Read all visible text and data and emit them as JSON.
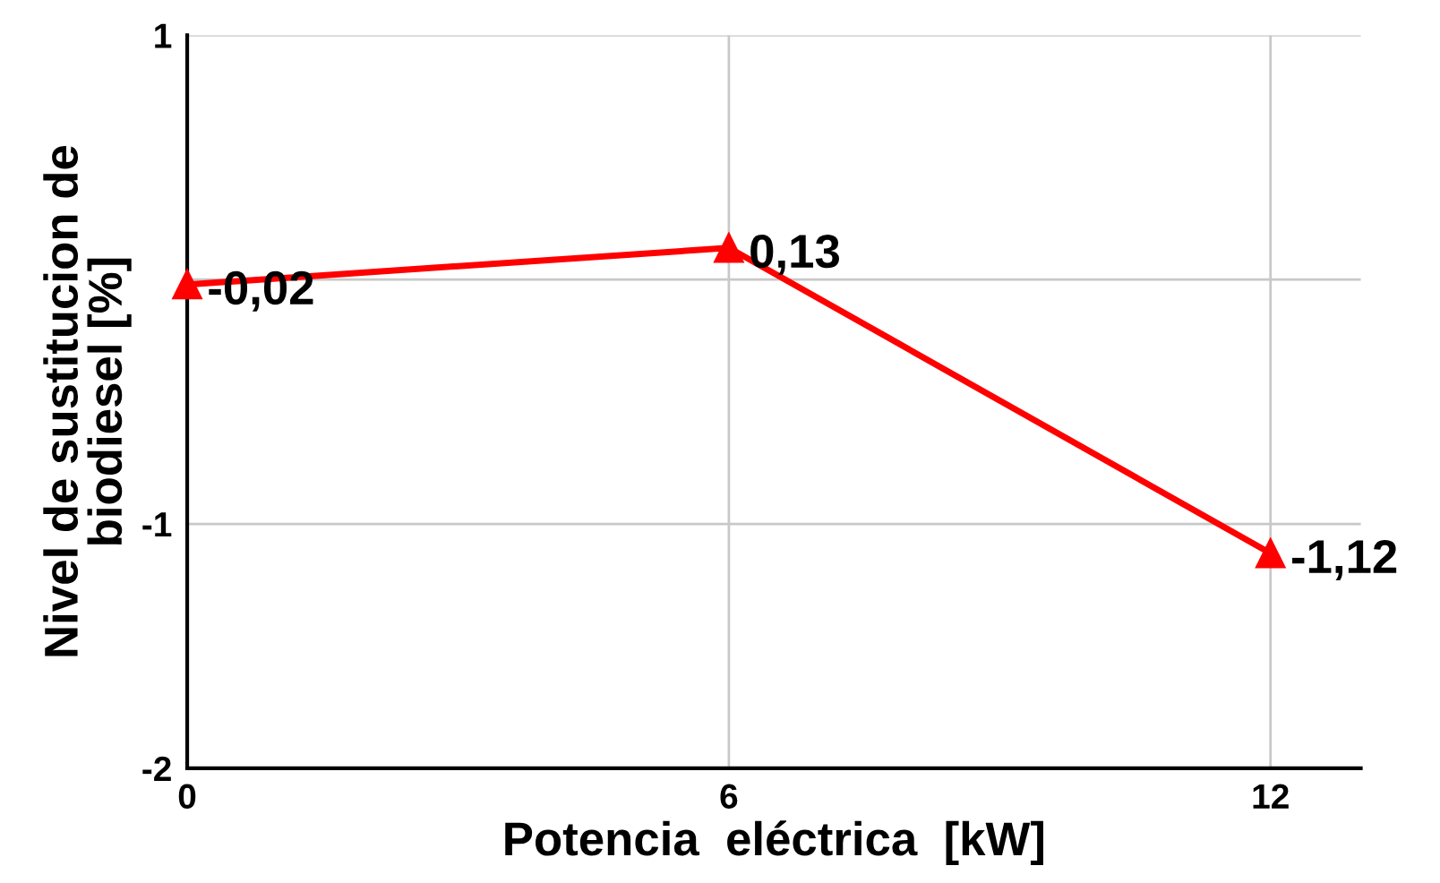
{
  "chart_data": {
    "type": "line",
    "xlabel": "Potencia  eléctrica  [kW]",
    "ylabel": "Nivel de sustitucion de\nbiodiesel [%]",
    "x": [
      0,
      6,
      12
    ],
    "series": [
      {
        "color": "#ff0000",
        "values": [
          -0.02,
          0.13,
          -1.12
        ],
        "value_labels": [
          "-0,02",
          "0,13",
          "-1,12"
        ]
      }
    ],
    "xlim": [
      0,
      13
    ],
    "xticks": [
      0,
      6,
      12
    ],
    "ylim": [
      -2,
      1
    ],
    "yticks": [
      1,
      {
        "value": 0,
        "label": null
      },
      -1,
      -2
    ],
    "grid": true,
    "marker": "triangle",
    "line_style": "solid"
  }
}
